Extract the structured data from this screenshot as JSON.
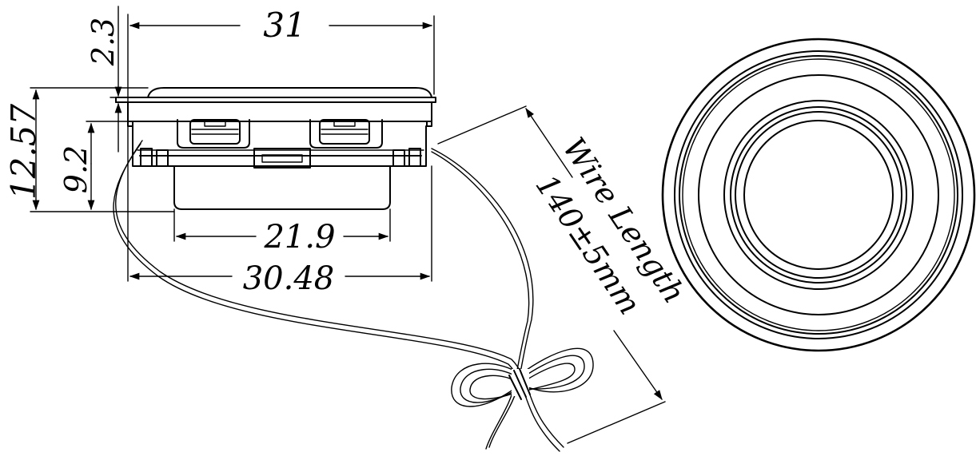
{
  "dimensions": {
    "top_width": "31",
    "top_thickness": "2.3",
    "overall_height": "12.57",
    "body_height": "9.2",
    "magnet_width": "21.9",
    "base_width": "30.48"
  },
  "wire": {
    "label_line1": "Wire Length",
    "label_line2": "140±5mm"
  }
}
